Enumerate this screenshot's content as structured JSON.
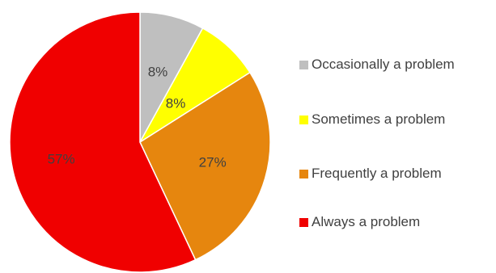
{
  "chart_data": {
    "type": "pie",
    "title": "",
    "start_angle_deg": 0,
    "direction": "clockwise",
    "slices": [
      {
        "label": "Occasionally a problem",
        "value": 8,
        "display": "8%",
        "color": "#BFBFBF"
      },
      {
        "label": "Sometimes a problem",
        "value": 8,
        "display": "8%",
        "color": "#FFFF00"
      },
      {
        "label": "Frequently a problem",
        "value": 27,
        "display": "27%",
        "color": "#E6860E"
      },
      {
        "label": "Always a problem",
        "value": 57,
        "display": "57%",
        "color": "#F00000"
      }
    ],
    "legend_position": "right"
  }
}
